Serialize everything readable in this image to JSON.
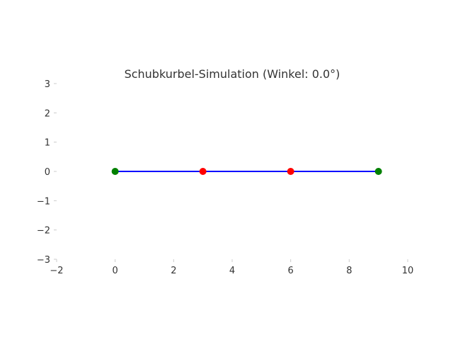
{
  "chart_data": {
    "type": "line",
    "title": "Schubkurbel-Simulation (Winkel: 0.0°)",
    "xlabel": "",
    "ylabel": "",
    "xlim": [
      -2,
      10
    ],
    "ylim": [
      -3,
      3
    ],
    "x_ticks": [
      -2,
      0,
      2,
      4,
      6,
      8,
      10
    ],
    "y_ticks": [
      -3,
      -2,
      -1,
      0,
      1,
      2,
      3
    ],
    "x_tick_labels": [
      "−2",
      "0",
      "2",
      "4",
      "6",
      "8",
      "10"
    ],
    "y_tick_labels": [
      "−3",
      "−2",
      "−1",
      "0",
      "1",
      "2",
      "3"
    ],
    "grid": false,
    "legend": "none",
    "series": [
      {
        "x": [
          0,
          3,
          6,
          9
        ],
        "y": [
          0,
          0,
          0,
          0
        ],
        "line_color": "#0000ff",
        "marker_colors": [
          "#008000",
          "#ff0000",
          "#ff0000",
          "#008000"
        ]
      }
    ]
  }
}
